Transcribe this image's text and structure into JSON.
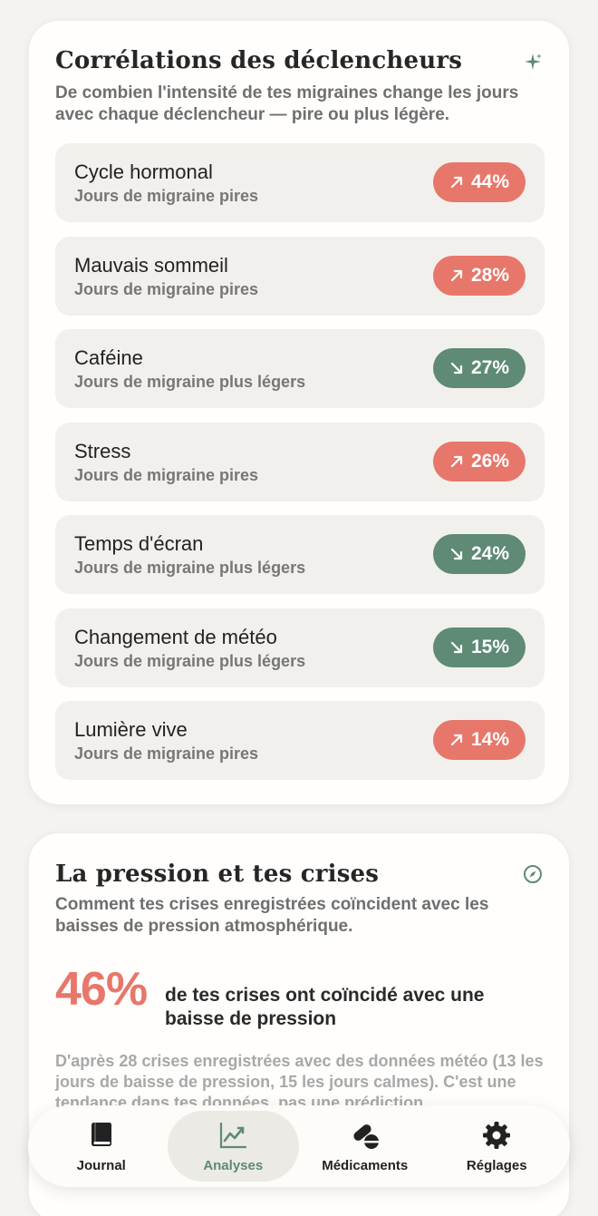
{
  "triggers_card": {
    "title": "Corrélations des déclencheurs",
    "subtitle": "De combien l'intensité de tes migraines change les jours avec chaque déclencheur — pire ou plus légère.",
    "icon": "sparkle-icon",
    "items": [
      {
        "name": "Cycle hormonal",
        "desc": "Jours de migraine pires",
        "value": "44%",
        "direction": "up"
      },
      {
        "name": "Mauvais sommeil",
        "desc": "Jours de migraine pires",
        "value": "28%",
        "direction": "up"
      },
      {
        "name": "Caféine",
        "desc": "Jours de migraine plus légers",
        "value": "27%",
        "direction": "down"
      },
      {
        "name": "Stress",
        "desc": "Jours de migraine pires",
        "value": "26%",
        "direction": "up"
      },
      {
        "name": "Temps d'écran",
        "desc": "Jours de migraine plus légers",
        "value": "24%",
        "direction": "down"
      },
      {
        "name": "Changement de météo",
        "desc": "Jours de migraine plus légers",
        "value": "15%",
        "direction": "down"
      },
      {
        "name": "Lumière vive",
        "desc": "Jours de migraine pires",
        "value": "14%",
        "direction": "up"
      }
    ]
  },
  "pressure_card": {
    "title": "La pression et tes crises",
    "subtitle": "Comment tes crises enregistrées coïncident avec les baisses de pression atmosphérique.",
    "icon": "compass-icon",
    "stat_value": "46%",
    "stat_text": "de tes crises ont coïncidé avec une baisse de pression",
    "footnote": "D'après 28 crises enregistrées avec des données météo (13 les jours de baisse de pression, 15 les jours calmes). C'est une tendance dans tes données, pas une prédiction."
  },
  "tabbar": {
    "tabs": [
      {
        "label": "Journal",
        "icon": "book-icon",
        "active": false
      },
      {
        "label": "Analyses",
        "icon": "chart-icon",
        "active": true
      },
      {
        "label": "Médicaments",
        "icon": "pills-icon",
        "active": false
      },
      {
        "label": "Réglages",
        "icon": "gear-icon",
        "active": false
      }
    ]
  },
  "colors": {
    "worse": "#e7776a",
    "lighter": "#5e8a76",
    "accent": "#5e8a76"
  }
}
